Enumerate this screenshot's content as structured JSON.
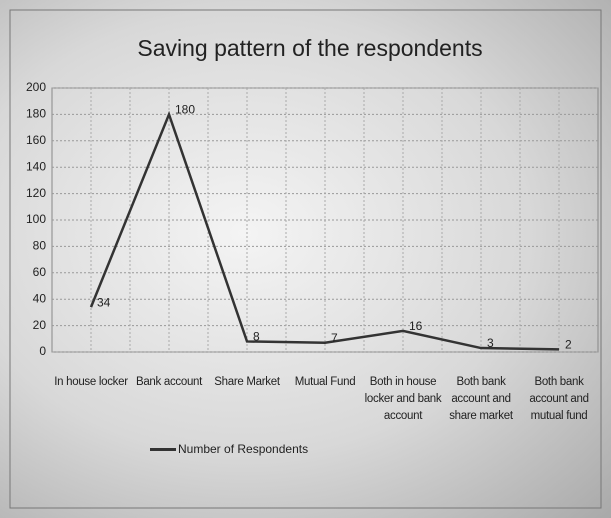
{
  "chart_data": {
    "type": "line",
    "title": "Saving pattern of the respondents",
    "categories": [
      "In house locker",
      "Bank account",
      "Share Market",
      "Mutual Fund",
      "Both in house locker and bank account",
      "Both bank account and share market",
      "Both bank account and mutual fund"
    ],
    "series": [
      {
        "name": "Number of Respondents",
        "color": "#333333",
        "values": [
          34,
          180,
          8,
          7,
          16,
          3,
          2
        ]
      }
    ],
    "ylim": [
      0,
      200
    ],
    "yticks": [
      0,
      20,
      40,
      60,
      80,
      100,
      120,
      140,
      160,
      180,
      200
    ],
    "grid": true,
    "legend": "bottom"
  }
}
